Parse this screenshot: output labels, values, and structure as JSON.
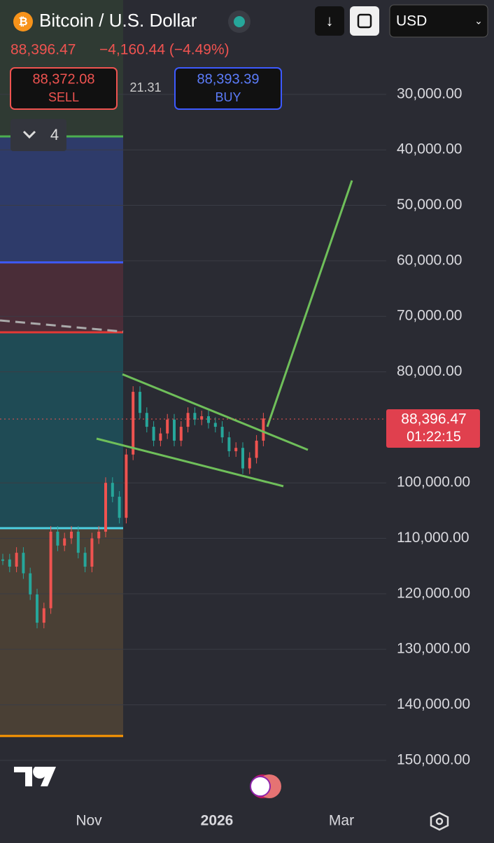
{
  "header": {
    "title": "Bitcoin / U.S. Dollar",
    "price": "88,396.47",
    "change": "−4,160.44 (−4.49%)",
    "currency": "USD"
  },
  "trade": {
    "sell_price": "88,372.08",
    "sell_label": "SELL",
    "spread": "21.31",
    "buy_price": "88,393.39",
    "buy_label": "BUY"
  },
  "indicators_count": "4",
  "chart_data": {
    "type": "candlestick",
    "inverted": true,
    "closes": [
      113800,
      115100,
      112600,
      116300,
      120100,
      125200,
      122600,
      108800,
      111300,
      110000,
      108800,
      112600,
      115100,
      110000,
      108800,
      100000,
      102500,
      106300,
      94900,
      83600,
      87400,
      89900,
      92400,
      91100,
      88600,
      92400,
      89900,
      87400,
      88600,
      88000,
      89200,
      89900,
      91800,
      94300,
      93700,
      97400,
      95500,
      92400,
      88396.47
    ],
    "up_color": "#26a69a",
    "down_color": "#ef5350",
    "ylim": [
      13000,
      156700
    ],
    "yticks": [
      {
        "value": 30000,
        "label": "30,000.00"
      },
      {
        "value": 40000,
        "label": "40,000.00"
      },
      {
        "value": 50000,
        "label": "50,000.00"
      },
      {
        "value": 60000,
        "label": "60,000.00"
      },
      {
        "value": 70000,
        "label": "70,000.00"
      },
      {
        "value": 80000,
        "label": "80,000.00"
      },
      {
        "value": 100000,
        "label": "100,000.00"
      },
      {
        "value": 110000,
        "label": "110,000.00"
      },
      {
        "value": 120000,
        "label": "120,000.00"
      },
      {
        "value": 130000,
        "label": "130,000.00"
      },
      {
        "value": 140000,
        "label": "140,000.00"
      },
      {
        "value": 150000,
        "label": "150,000.00"
      }
    ],
    "xticks": [
      "Nov",
      "2026",
      "Mar"
    ],
    "last_price": "88,396.47",
    "countdown": "01:22:15",
    "grid": true
  }
}
